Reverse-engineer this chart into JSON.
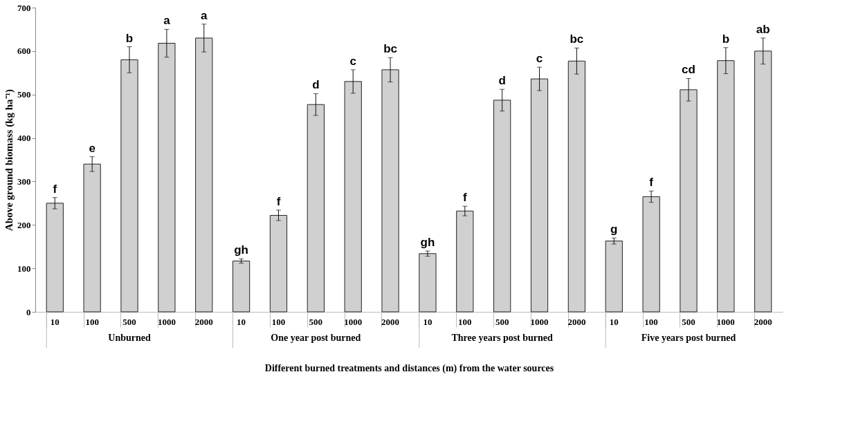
{
  "chart_data": {
    "type": "bar",
    "xlabel": "Different burned treatments and distances (m) from the water sources",
    "ylabel": "Above ground biomass (kg ha⁻¹)",
    "categories": [
      "10",
      "100",
      "500",
      "1000",
      "2000",
      "10",
      "100",
      "500",
      "1000",
      "2000",
      "10",
      "100",
      "500",
      "1000",
      "2000",
      "10",
      "100",
      "500",
      "1000",
      "2000"
    ],
    "values": [
      250,
      340,
      580,
      618,
      630,
      117,
      222,
      477,
      530,
      557,
      134,
      232,
      487,
      536,
      577,
      163,
      265,
      511,
      578,
      600
    ],
    "errors": [
      13,
      17,
      30,
      32,
      32,
      5,
      12,
      25,
      27,
      28,
      6,
      11,
      25,
      27,
      30,
      7,
      13,
      26,
      30,
      30
    ],
    "value_labels": [
      "f",
      "e",
      "b",
      "a",
      "a",
      "gh",
      "f",
      "d",
      "c",
      "bc",
      "gh",
      "f",
      "d",
      "c",
      "bc",
      "g",
      "f",
      "cd",
      "b",
      "ab"
    ],
    "color": "#d0d0d0",
    "annotations": [
      "Unburned",
      "One year post burned",
      "Three years post burned",
      "Five years post burned"
    ],
    "ylim": [
      0,
      700
    ],
    "yticks": [
      0,
      100,
      200,
      300,
      400,
      500,
      600,
      700
    ],
    "grid": false
  }
}
